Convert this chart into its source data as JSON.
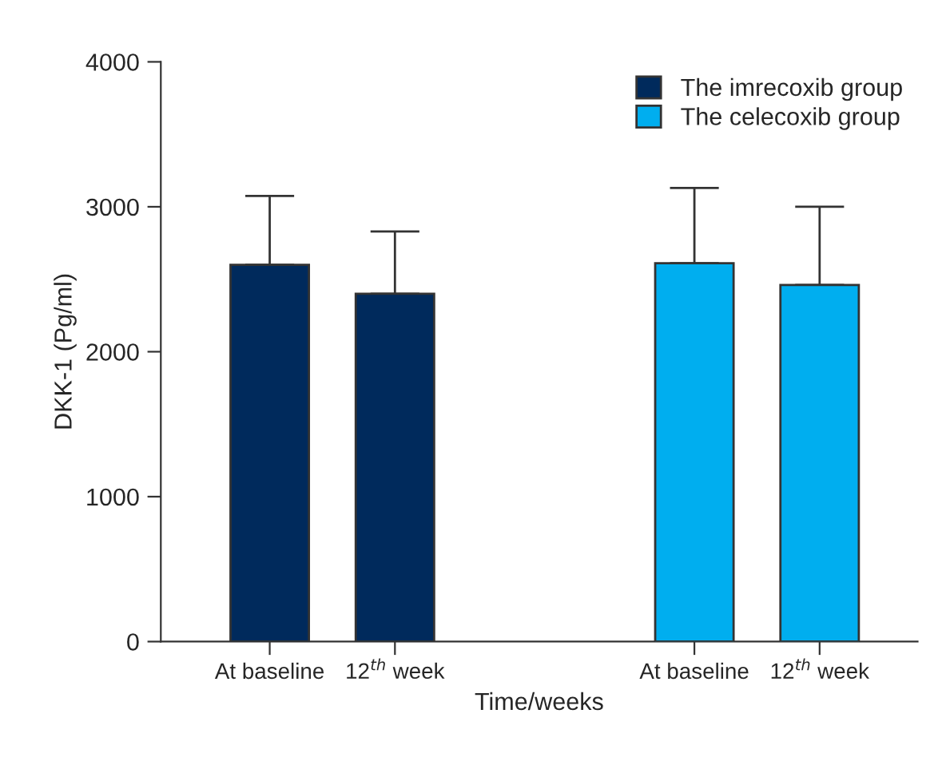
{
  "chart_data": {
    "type": "bar",
    "xlabel": "Time/weeks",
    "ylabel": "DKK-1 (Pg/ml)",
    "categories": [
      "At baseline",
      "12$^{th}$ week",
      "At baseline",
      "12$^{th}$ week"
    ],
    "series": [
      {
        "name": "The imrecoxib group",
        "color": "#002a5c",
        "values": [
          2600,
          2400,
          null,
          null
        ],
        "errors": [
          475,
          430,
          null,
          null
        ]
      },
      {
        "name": "The celecoxib group",
        "color": "#00aeef",
        "values": [
          null,
          null,
          2610,
          2460
        ],
        "errors": [
          null,
          null,
          520,
          540
        ]
      }
    ],
    "ylim": [
      0,
      4000
    ],
    "yticks": [
      0,
      1000,
      2000,
      3000,
      4000
    ],
    "grid": false,
    "legend": "top right"
  }
}
